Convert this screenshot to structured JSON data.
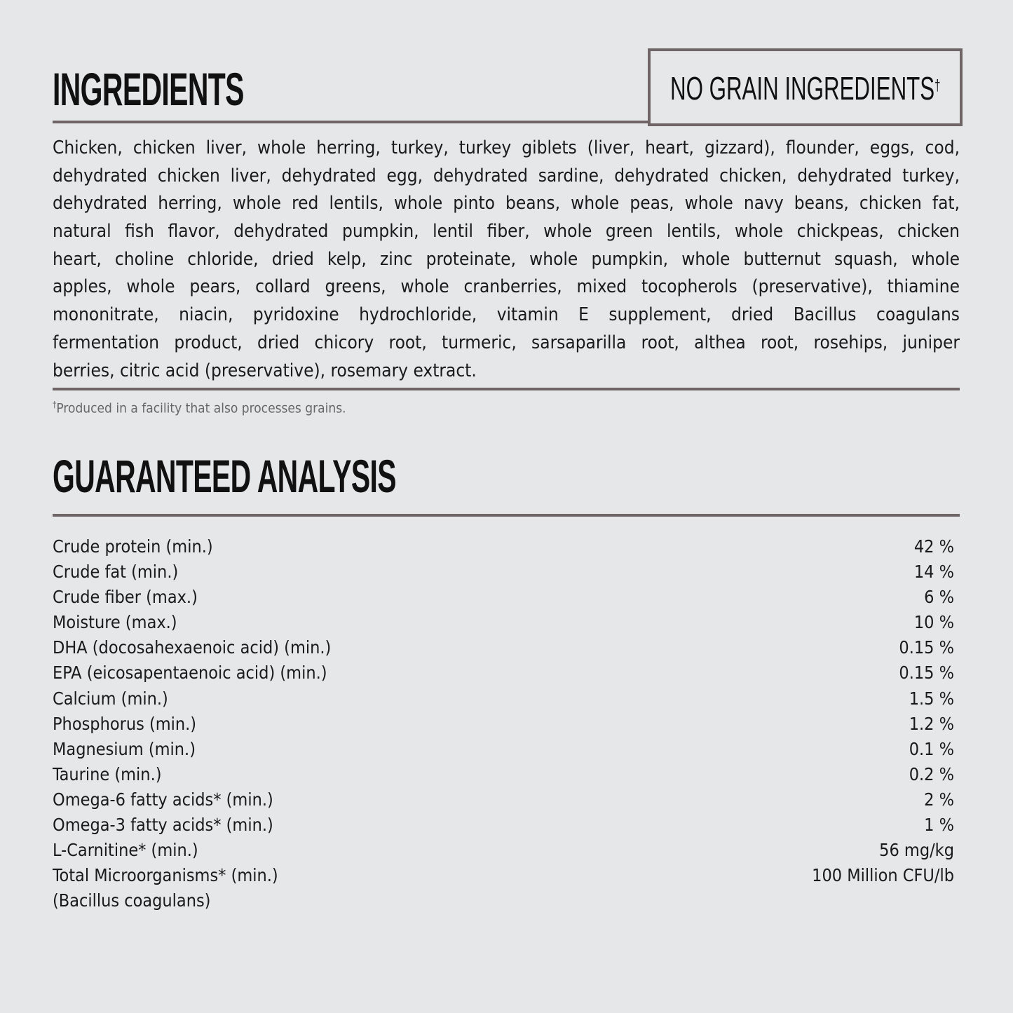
{
  "ingredients": {
    "title": "INGREDIENTS",
    "badge": "NO GRAIN INGREDIENTS",
    "badge_mark": "†",
    "lines": [
      "Chicken, chicken liver, whole herring, turkey, turkey giblets (liver, heart, gizzard), flounder, eggs, cod,",
      "dehydrated chicken liver, dehydrated egg, dehydrated sardine, dehydrated chicken, dehydrated turkey,",
      "dehydrated herring, whole red lentils, whole pinto beans, whole peas, whole navy beans, chicken fat,",
      "natural fish flavor, dehydrated pumpkin, lentil fiber, whole green lentils, whole chickpeas, chicken",
      "heart, choline chloride, dried kelp, zinc proteinate, whole pumpkin, whole butternut squash, whole",
      "apples, whole pears, collard greens, whole cranberries, mixed tocopherols (preservative), thiamine",
      "mononitrate, niacin, pyridoxine hydrochloride, vitamin E supplement, dried Bacillus coagulans",
      "fermentation product, dried chicory root, turmeric, sarsaparilla root, althea root, rosehips, juniper",
      "berries, citric acid (preservative), rosemary extract."
    ],
    "footnote_mark": "†",
    "footnote": "Produced in a facility that also processes grains."
  },
  "analysis": {
    "title": "GUARANTEED ANALYSIS",
    "rows": [
      {
        "label": "Crude protein (min.)",
        "value": "42 %"
      },
      {
        "label": "Crude fat (min.)",
        "value": "14 %"
      },
      {
        "label": "Crude fiber (max.)",
        "value": "6 %"
      },
      {
        "label": "Moisture (max.)",
        "value": "10 %"
      },
      {
        "label": "DHA (docosahexaenoic acid) (min.)",
        "value": "0.15 %"
      },
      {
        "label": "EPA (eicosapentaenoic acid) (min.)",
        "value": "0.15 %"
      },
      {
        "label": "Calcium (min.)",
        "value": "1.5 %"
      },
      {
        "label": "Phosphorus (min.)",
        "value": "1.2 %"
      },
      {
        "label": "Magnesium (min.)",
        "value": "0.1 %"
      },
      {
        "label": "Taurine (min.)",
        "value": "0.2 %"
      },
      {
        "label": "Omega-6 fatty acids* (min.)",
        "value": "2 %"
      },
      {
        "label": "Omega-3 fatty acids* (min.)",
        "value": "1 %"
      },
      {
        "label": "L-Carnitine* (min.)",
        "value": "56 mg/kg"
      },
      {
        "label": "Total Microorganisms* (min.)",
        "value": "100 Million CFU/lb"
      },
      {
        "label": "(Bacillus coagulans)",
        "value": ""
      }
    ]
  },
  "colors": {
    "background": "#e6e7e9",
    "rule": "#6f6566",
    "text": "#1a1a1a"
  }
}
